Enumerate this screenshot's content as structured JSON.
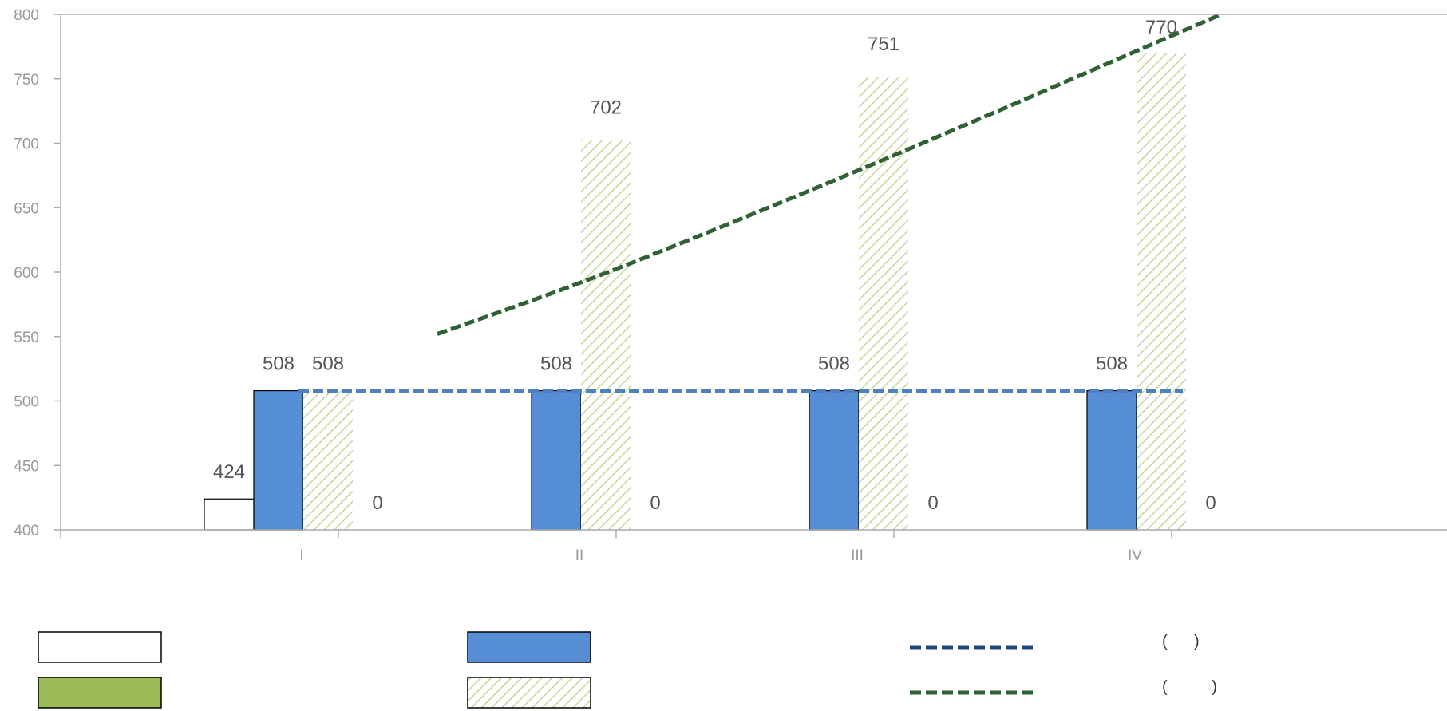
{
  "colors": {
    "axis": "#AAAAAA",
    "tick_text": "#999999",
    "label_text": "#555555",
    "blue_bar": "#558ED5",
    "green_hatch": "#C3D69B",
    "green_solid": "#9BBB59",
    "blue_line": "#4F81BD",
    "legend_blue_line": "#1F497D",
    "green_line": "#2E6234"
  },
  "chart_data": {
    "type": "bar",
    "categories": [
      "I",
      "II",
      "III",
      "IV"
    ],
    "ylim": [
      400,
      800
    ],
    "yticks": [
      "400",
      "450",
      "500",
      "550",
      "600",
      "650",
      "700",
      "750",
      "800"
    ],
    "series": [
      {
        "values": [
          424,
          null,
          null,
          null
        ],
        "labels": [
          "424",
          "",
          "",
          ""
        ],
        "style": "white-outline"
      },
      {
        "values": [
          508,
          508,
          508,
          508
        ],
        "labels": [
          "508",
          "508",
          "508",
          "508"
        ],
        "style": "blue"
      },
      {
        "values": [
          508,
          702,
          751,
          770
        ],
        "labels": [
          "508",
          "702",
          "751",
          "770"
        ],
        "style": "green-hatch"
      },
      {
        "values": [
          0,
          0,
          0,
          0
        ],
        "labels": [
          "0",
          "0",
          "0",
          "0"
        ],
        "style": "green-solid"
      }
    ],
    "lines": [
      {
        "values": [
          508,
          508,
          508,
          508
        ],
        "style": "blue-dashed"
      },
      {
        "values": [
          552,
          602,
          688,
          800
        ],
        "style": "green-dashed"
      }
    ],
    "grid": false,
    "legend_position": "bottom"
  },
  "legend": {
    "items": [
      {
        "swatch": "white-outline",
        "label": ""
      },
      {
        "swatch": "blue",
        "label": ""
      },
      {
        "swatch": "blue-dashed",
        "label": "(      )"
      },
      {
        "swatch": "green-solid",
        "label": ""
      },
      {
        "swatch": "green-hatch",
        "label": ""
      },
      {
        "swatch": "green-dashed",
        "label": "(          )"
      }
    ]
  }
}
